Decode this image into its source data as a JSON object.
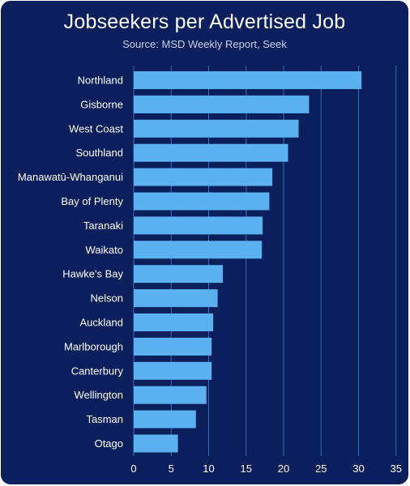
{
  "chart_data": {
    "type": "bar",
    "orientation": "horizontal",
    "title": "Jobseekers per Advertised Job",
    "subtitle": "Source: MSD Weekly Report, Seek",
    "categories": [
      "Northland",
      "Gisborne",
      "West Coast",
      "Southland",
      "Manawatū-Whanganui",
      "Bay of Plenty",
      "Taranaki",
      "Waikato",
      "Hawke's Bay",
      "Nelson",
      "Auckland",
      "Marlborough",
      "Canterbury",
      "Wellington",
      "Tasman",
      "Otago"
    ],
    "values": [
      30.4,
      23.4,
      22.0,
      20.6,
      18.5,
      18.1,
      17.2,
      17.1,
      11.9,
      11.2,
      10.6,
      10.4,
      10.4,
      9.7,
      8.3,
      5.9
    ],
    "xlim": [
      0,
      35
    ],
    "xticks": [
      0,
      5,
      10,
      15,
      20,
      25,
      30,
      35
    ],
    "grid": true,
    "legend": "none",
    "colors": {
      "background": "#0b1f5c",
      "bar": "#5bb0ef",
      "grid": "#2f6fc2",
      "text": "#ffffff"
    }
  }
}
